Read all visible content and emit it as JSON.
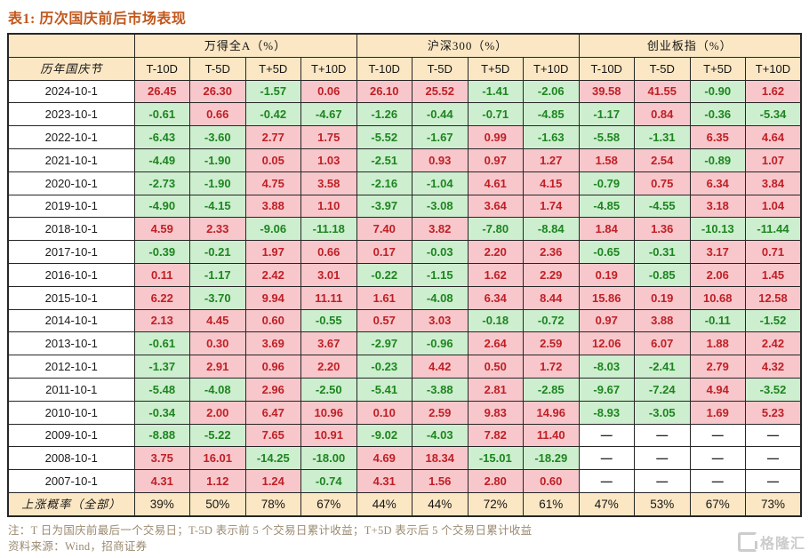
{
  "title": "表1: 历次国庆前后市场表现",
  "colors": {
    "title_text": "#c2571c",
    "header_bg": "#fbe7c4",
    "positive_bg": "#f7c7cb",
    "positive_text": "#bf2026",
    "negative_bg": "#cdeecf",
    "negative_text": "#1d851f",
    "border": "#262626",
    "note_text": "#9b8a70",
    "watermark": "#cccccc"
  },
  "table": {
    "row_header_label": "历年国庆节",
    "groups": [
      {
        "label": "万得全A（%）"
      },
      {
        "label": "沪深300（%）"
      },
      {
        "label": "创业板指（%）"
      }
    ],
    "sub_columns": [
      "T-10D",
      "T-5D",
      "T+5D",
      "T+10D"
    ],
    "rows": [
      {
        "date": "2024-10-1",
        "values": [
          "26.45",
          "26.30",
          "-1.57",
          "0.06",
          "26.10",
          "25.52",
          "-1.41",
          "-2.06",
          "39.58",
          "41.55",
          "-0.90",
          "1.62"
        ]
      },
      {
        "date": "2023-10-1",
        "values": [
          "-0.61",
          "0.66",
          "-0.42",
          "-4.67",
          "-1.26",
          "-0.44",
          "-0.71",
          "-4.85",
          "-1.17",
          "0.84",
          "-0.36",
          "-5.34"
        ]
      },
      {
        "date": "2022-10-1",
        "values": [
          "-6.43",
          "-3.60",
          "2.77",
          "1.75",
          "-5.52",
          "-1.67",
          "0.99",
          "-1.63",
          "-5.58",
          "-1.31",
          "6.35",
          "4.64"
        ]
      },
      {
        "date": "2021-10-1",
        "values": [
          "-4.49",
          "-1.90",
          "0.05",
          "1.03",
          "-2.51",
          "0.93",
          "0.97",
          "1.27",
          "1.58",
          "2.54",
          "-0.89",
          "1.07"
        ]
      },
      {
        "date": "2020-10-1",
        "values": [
          "-2.73",
          "-1.90",
          "4.75",
          "3.58",
          "-2.16",
          "-1.04",
          "4.61",
          "4.15",
          "-0.79",
          "0.75",
          "6.34",
          "3.84"
        ]
      },
      {
        "date": "2019-10-1",
        "values": [
          "-4.90",
          "-4.15",
          "3.88",
          "1.10",
          "-3.97",
          "-3.08",
          "3.64",
          "1.74",
          "-4.85",
          "-4.55",
          "3.18",
          "1.04"
        ]
      },
      {
        "date": "2018-10-1",
        "values": [
          "4.59",
          "2.33",
          "-9.06",
          "-11.18",
          "7.40",
          "3.82",
          "-7.80",
          "-8.84",
          "1.84",
          "1.36",
          "-10.13",
          "-11.44"
        ]
      },
      {
        "date": "2017-10-1",
        "values": [
          "-0.39",
          "-0.21",
          "1.97",
          "0.66",
          "0.17",
          "-0.03",
          "2.20",
          "2.36",
          "-0.65",
          "-0.31",
          "3.17",
          "0.71"
        ]
      },
      {
        "date": "2016-10-1",
        "values": [
          "0.11",
          "-1.17",
          "2.42",
          "3.01",
          "-0.22",
          "-1.15",
          "1.62",
          "2.29",
          "0.19",
          "-0.85",
          "2.06",
          "1.45"
        ]
      },
      {
        "date": "2015-10-1",
        "values": [
          "6.22",
          "-3.70",
          "9.94",
          "11.11",
          "1.61",
          "-4.08",
          "6.34",
          "8.44",
          "15.86",
          "0.19",
          "10.68",
          "12.58"
        ]
      },
      {
        "date": "2014-10-1",
        "values": [
          "2.13",
          "4.45",
          "0.60",
          "-0.55",
          "0.57",
          "3.03",
          "-0.18",
          "-0.72",
          "0.97",
          "3.88",
          "-0.11",
          "-1.52"
        ]
      },
      {
        "date": "2013-10-1",
        "values": [
          "-0.61",
          "0.30",
          "3.69",
          "3.67",
          "-2.97",
          "-0.96",
          "2.64",
          "2.59",
          "12.06",
          "6.07",
          "1.88",
          "2.42"
        ]
      },
      {
        "date": "2012-10-1",
        "values": [
          "-1.37",
          "2.91",
          "0.96",
          "2.20",
          "-0.23",
          "4.42",
          "0.50",
          "1.72",
          "-8.03",
          "-2.41",
          "2.79",
          "4.32"
        ]
      },
      {
        "date": "2011-10-1",
        "values": [
          "-5.48",
          "-4.08",
          "2.96",
          "-2.50",
          "-5.41",
          "-3.88",
          "2.81",
          "-2.85",
          "-9.67",
          "-7.24",
          "4.94",
          "-3.52"
        ]
      },
      {
        "date": "2010-10-1",
        "values": [
          "-0.34",
          "2.00",
          "6.47",
          "10.96",
          "0.10",
          "2.59",
          "9.83",
          "14.96",
          "-8.93",
          "-3.05",
          "1.69",
          "5.23"
        ]
      },
      {
        "date": "2009-10-1",
        "values": [
          "-8.88",
          "-5.22",
          "7.65",
          "10.91",
          "-9.02",
          "-4.03",
          "7.82",
          "11.40",
          "—",
          "—",
          "—",
          "—"
        ]
      },
      {
        "date": "2008-10-1",
        "values": [
          "3.75",
          "16.01",
          "-14.25",
          "-18.00",
          "4.69",
          "18.34",
          "-15.01",
          "-18.29",
          "—",
          "—",
          "—",
          "—"
        ]
      },
      {
        "date": "2007-10-1",
        "values": [
          "4.31",
          "1.12",
          "1.24",
          "-0.74",
          "4.31",
          "1.56",
          "2.80",
          "0.60",
          "—",
          "—",
          "—",
          "—"
        ]
      }
    ],
    "summary": {
      "label": "上涨概率（全部）",
      "values": [
        "39%",
        "50%",
        "78%",
        "67%",
        "44%",
        "44%",
        "72%",
        "61%",
        "47%",
        "53%",
        "67%",
        "73%"
      ]
    }
  },
  "notes": {
    "line1": "注：T 日为国庆前最后一个交易日；T-5D 表示前 5 个交易日累计收益；T+5D 表示后 5 个交易日累计收益",
    "line2": "资料来源：Wind，招商证券"
  },
  "watermark": {
    "text": "格隆汇"
  }
}
